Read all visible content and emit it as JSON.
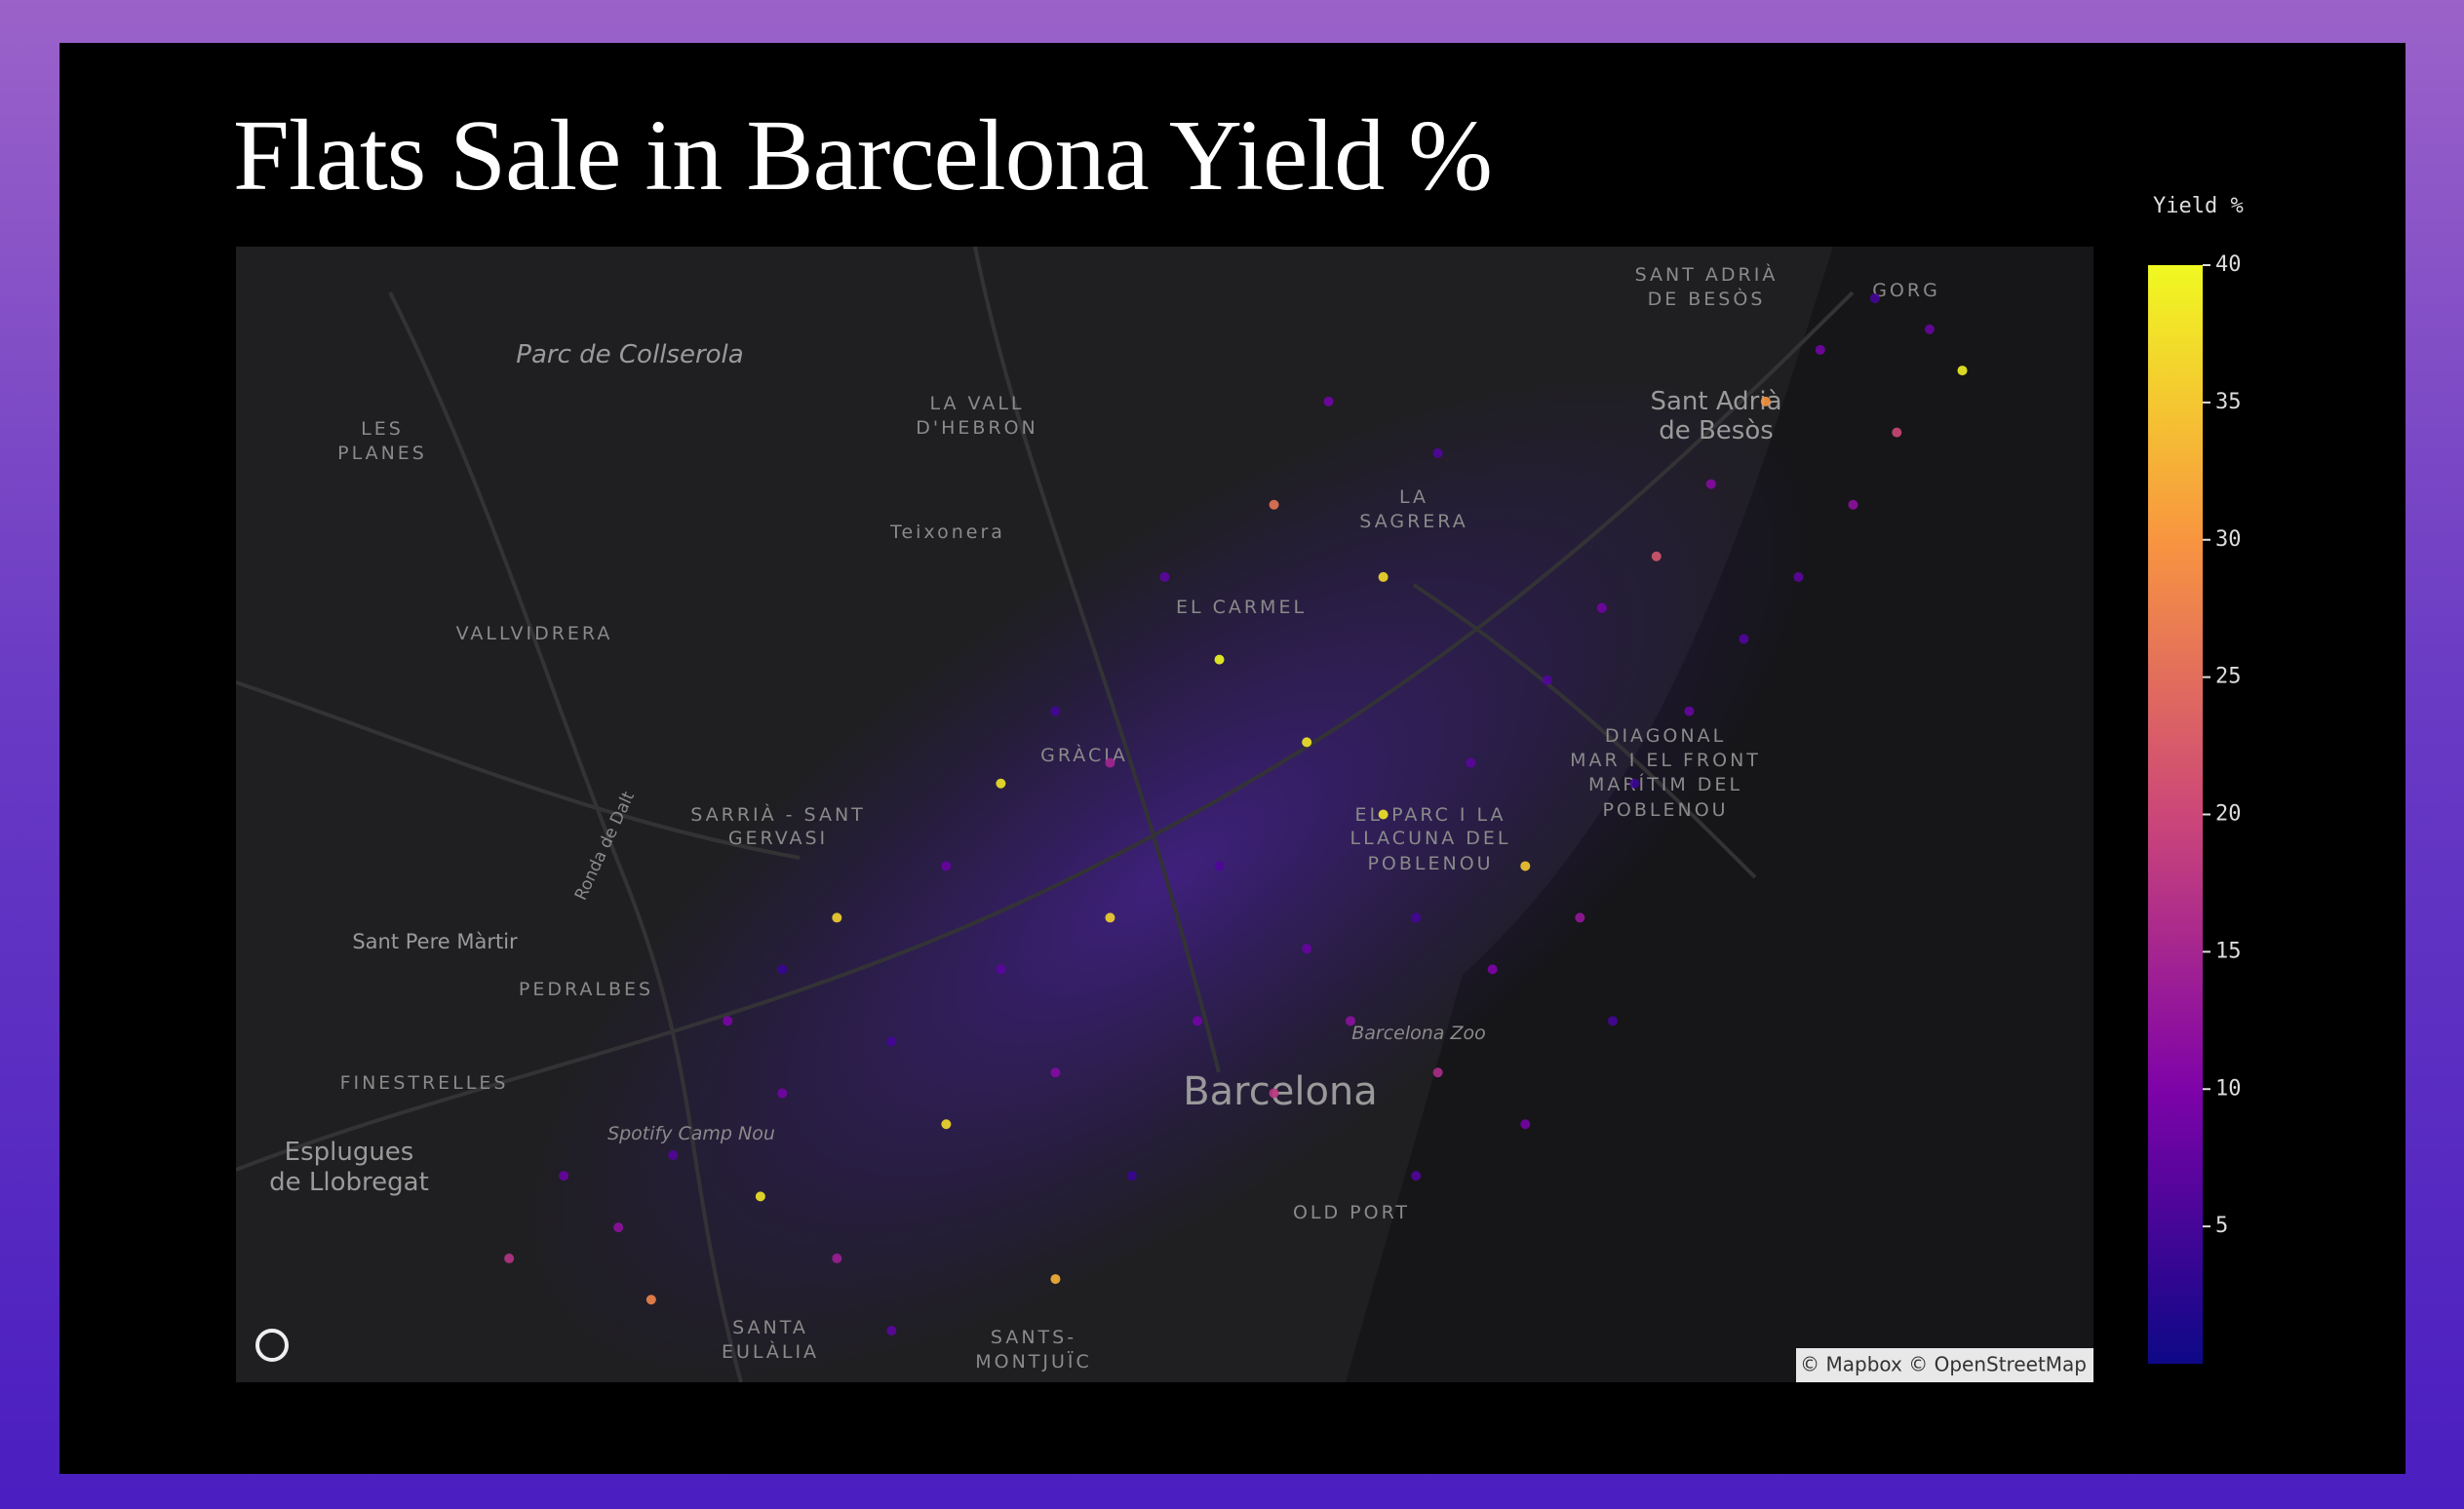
{
  "header": {
    "title": "Flats Sale in Barcelona Yield %"
  },
  "map": {
    "bounds": {
      "lon": [
        2.07,
        2.24
      ],
      "lat": [
        41.35,
        41.46
      ]
    },
    "labels": [
      "Parc de Collserola",
      "LES",
      "PLANES",
      "LA VALL",
      "D'HEBRON",
      "Teixonera",
      "VALLVIDRERA",
      "LA",
      "SAGRERA",
      "SANT ADRIÀ",
      "DE BESÒS",
      "Sant Adrià",
      "de Besòs",
      "GORG",
      "EL CARMEL",
      "GRÀCIA",
      "SARRIÀ - SANT",
      "GERVASI",
      "DIAGONAL",
      "MAR I EL FRONT",
      "MARÍTIM DEL",
      "POBLENOU",
      "EL PARC I LA",
      "LLACUNA DEL",
      "POBLENOU",
      "Sant Pere Màrtir",
      "PEDRALBES",
      "Barcelona Zoo",
      "Barcelona",
      "FINESTRELLES",
      "Esplugues",
      "de Llobregat",
      "Spotify Camp Nou",
      "OLD PORT",
      "SANTS-",
      "MONTJUÏC",
      "SANTA",
      "EULÀLIA",
      "Ronda de Dalt"
    ],
    "attribution": "© Mapbox © OpenStreetMap"
  },
  "chart_data": {
    "type": "scatter_map",
    "lon": [
      2.1,
      2.105,
      2.11,
      2.118,
      2.12,
      2.125,
      2.13,
      2.135,
      2.14,
      2.145,
      2.15,
      2.152,
      2.158,
      2.16,
      2.165,
      2.168,
      2.172,
      2.175,
      2.178,
      2.18,
      2.183,
      2.185,
      2.188,
      2.19,
      2.193,
      2.195,
      2.198,
      2.2,
      2.203,
      2.205,
      2.208,
      2.21,
      2.213,
      2.215,
      2.218,
      2.22,
      2.222,
      2.225,
      2.228,
      2.16,
      2.155,
      2.165,
      2.17,
      2.175,
      2.18,
      2.145,
      2.14,
      2.135,
      2.125,
      2.12,
      2.115,
      2.15,
      2.168,
      2.188,
      2.178,
      2.108,
      2.095,
      2.13,
      2.145,
      2.196
    ],
    "lat": [
      41.37,
      41.365,
      41.372,
      41.368,
      41.378,
      41.362,
      41.383,
      41.375,
      41.39,
      41.38,
      41.395,
      41.37,
      41.385,
      41.4,
      41.378,
      41.392,
      41.385,
      41.405,
      41.395,
      41.38,
      41.41,
      41.39,
      41.4,
      41.418,
      41.395,
      41.425,
      41.408,
      41.43,
      41.415,
      41.437,
      41.422,
      41.445,
      41.428,
      41.45,
      41.435,
      41.455,
      41.442,
      41.452,
      41.448,
      41.42,
      41.428,
      41.435,
      41.445,
      41.428,
      41.44,
      41.415,
      41.408,
      41.4,
      41.395,
      41.39,
      41.385,
      41.41,
      41.412,
      41.375,
      41.37,
      41.358,
      41.362,
      41.355,
      41.36,
      41.385
    ],
    "values": [
      8,
      12,
      6,
      38,
      9,
      14,
      5,
      37,
      7,
      11,
      36,
      4,
      9,
      6,
      18,
      8,
      12,
      38,
      5,
      16,
      7,
      10,
      35,
      6,
      13,
      9,
      4,
      22,
      8,
      11,
      6,
      30,
      7,
      9,
      12,
      5,
      20,
      8,
      39,
      40,
      7,
      26,
      9,
      37,
      6,
      5,
      38,
      8,
      36,
      4,
      10,
      15,
      38,
      9,
      6,
      28,
      17,
      7,
      33,
      5
    ],
    "colorbar_title": "Yield %",
    "clim": [
      0,
      40
    ],
    "cticks": [
      5,
      10,
      15,
      20,
      25,
      30,
      35,
      40
    ],
    "colorscale": [
      "#0d0887",
      "#7e03a8",
      "#cc4778",
      "#f89540",
      "#f0f921"
    ]
  }
}
